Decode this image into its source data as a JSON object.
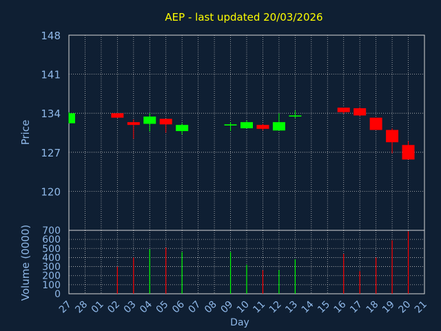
{
  "colors": {
    "background": "#0f1f33",
    "title": "#ffff00",
    "axis_text": "#8fb8e8",
    "grid": "#c0c0c0",
    "frame": "#d8d8d8",
    "up": "#00ff00",
    "down": "#ff0000"
  },
  "chart_data": {
    "type": "candlestick",
    "title": "AEP - last updated 20/03/2026",
    "price_axis": {
      "label": "Price",
      "ylim": [
        113,
        148
      ],
      "ticks": [
        120,
        127,
        134,
        141,
        148
      ],
      "grid": true
    },
    "volume_axis": {
      "label": "Volume (0000)",
      "ylim": [
        0,
        700
      ],
      "ticks": [
        0,
        100,
        200,
        300,
        400,
        500,
        600,
        700
      ],
      "grid": true
    },
    "xlabel": "Day",
    "x_ticks": [
      "27",
      "28",
      "01",
      "02",
      "03",
      "04",
      "05",
      "06",
      "07",
      "08",
      "09",
      "10",
      "11",
      "12",
      "13",
      "14",
      "15",
      "16",
      "17",
      "18",
      "19",
      "20",
      "21"
    ],
    "candles": [
      {
        "day": "27",
        "open": 132.2,
        "high": 134.2,
        "low": 132.2,
        "close": 134.0,
        "volume": 0
      },
      {
        "day": "02",
        "open": 134.0,
        "high": 134.0,
        "low": 133.2,
        "close": 133.2,
        "volume": 300
      },
      {
        "day": "03",
        "open": 132.4,
        "high": 132.9,
        "low": 129.4,
        "close": 131.9,
        "volume": 400
      },
      {
        "day": "04",
        "open": 132.1,
        "high": 134.0,
        "low": 130.7,
        "close": 133.4,
        "volume": 490
      },
      {
        "day": "05",
        "open": 133.0,
        "high": 133.0,
        "low": 130.5,
        "close": 132.0,
        "volume": 510
      },
      {
        "day": "06",
        "open": 130.8,
        "high": 132.2,
        "low": 130.2,
        "close": 131.9,
        "volume": 460
      },
      {
        "day": "09",
        "open": 131.8,
        "high": 132.4,
        "low": 130.8,
        "close": 132.0,
        "volume": 460
      },
      {
        "day": "10",
        "open": 131.3,
        "high": 132.7,
        "low": 131.3,
        "close": 132.4,
        "volume": 320
      },
      {
        "day": "11",
        "open": 131.9,
        "high": 132.1,
        "low": 130.9,
        "close": 131.2,
        "volume": 260
      },
      {
        "day": "12",
        "open": 130.9,
        "high": 134.0,
        "low": 130.9,
        "close": 132.4,
        "volume": 260
      },
      {
        "day": "13",
        "open": 133.4,
        "high": 134.5,
        "low": 133.1,
        "close": 133.6,
        "volume": 380
      },
      {
        "day": "16",
        "open": 135.0,
        "high": 135.0,
        "low": 133.9,
        "close": 134.2,
        "volume": 440
      },
      {
        "day": "17",
        "open": 134.9,
        "high": 135.1,
        "low": 133.5,
        "close": 133.6,
        "volume": 250
      },
      {
        "day": "18",
        "open": 133.2,
        "high": 133.2,
        "low": 131.0,
        "close": 131.0,
        "volume": 400
      },
      {
        "day": "19",
        "open": 131.0,
        "high": 131.3,
        "low": 126.8,
        "close": 128.8,
        "volume": 590
      },
      {
        "day": "20",
        "open": 128.3,
        "high": 129.0,
        "low": 125.7,
        "close": 125.7,
        "volume": 690
      }
    ]
  }
}
